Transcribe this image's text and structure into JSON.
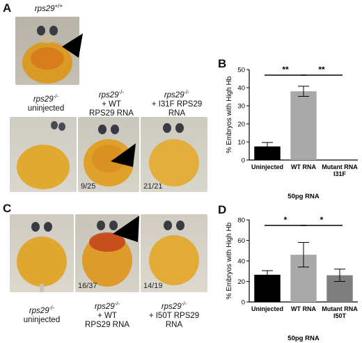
{
  "panel_a": {
    "letter": "A",
    "top_label": "rps29",
    "top_label_sup": "+/+",
    "captions": [
      {
        "gene": "rps29",
        "sup": "-/-",
        "lines": [
          "uninjected"
        ]
      },
      {
        "gene": "rps29",
        "sup": "-/-",
        "lines": [
          "+ WT",
          "RPS29 RNA"
        ]
      },
      {
        "gene": "rps29",
        "sup": "-/-",
        "lines": [
          "+ I31F RPS29",
          "RNA"
        ]
      }
    ],
    "counts": [
      "9/25",
      "21/21"
    ]
  },
  "panel_c": {
    "letter": "C",
    "captions": [
      {
        "gene": "rps29",
        "sup": "-/-",
        "lines": [
          "uninjected"
        ]
      },
      {
        "gene": "rps29",
        "sup": "-/-",
        "lines": [
          "+ WT",
          "RPS29 RNA"
        ]
      },
      {
        "gene": "rps29",
        "sup": "-/-",
        "lines": [
          "+ I50T RPS29",
          "RNA"
        ]
      }
    ],
    "counts": [
      "16/37",
      "14/19"
    ]
  },
  "chart_data": [
    {
      "panel": "B",
      "type": "bar",
      "categories": [
        "Uninjected",
        "WT RNA",
        "Mutant RNA I31F"
      ],
      "values": [
        7.5,
        38,
        0
      ],
      "errors": [
        2.2,
        2.8,
        0
      ],
      "colors": [
        "#000000",
        "#a9a9a9",
        "#7f7f7f"
      ],
      "ylabel": "% Embryos with High Hb",
      "xlabel": "50pg RNA",
      "ylim": [
        0,
        50
      ],
      "yticks": [
        0,
        10,
        20,
        30,
        40,
        50
      ],
      "significance": [
        {
          "from": 0,
          "to": 1,
          "label": "**"
        },
        {
          "from": 1,
          "to": 2,
          "label": "**"
        }
      ]
    },
    {
      "panel": "D",
      "type": "bar",
      "categories": [
        "Uninjected",
        "WT RNA",
        "Mutant RNA I50T"
      ],
      "values": [
        26.5,
        46,
        26
      ],
      "errors": [
        4,
        12,
        6
      ],
      "colors": [
        "#000000",
        "#a9a9a9",
        "#7f7f7f"
      ],
      "ylabel": "% Embryos with High Hb",
      "xlabel": "50pg RNA",
      "ylim": [
        0,
        80
      ],
      "yticks": [
        0,
        20,
        40,
        60,
        80
      ],
      "significance": [
        {
          "from": 0,
          "to": 1,
          "label": "*"
        },
        {
          "from": 1,
          "to": 2,
          "label": "*"
        }
      ]
    }
  ]
}
